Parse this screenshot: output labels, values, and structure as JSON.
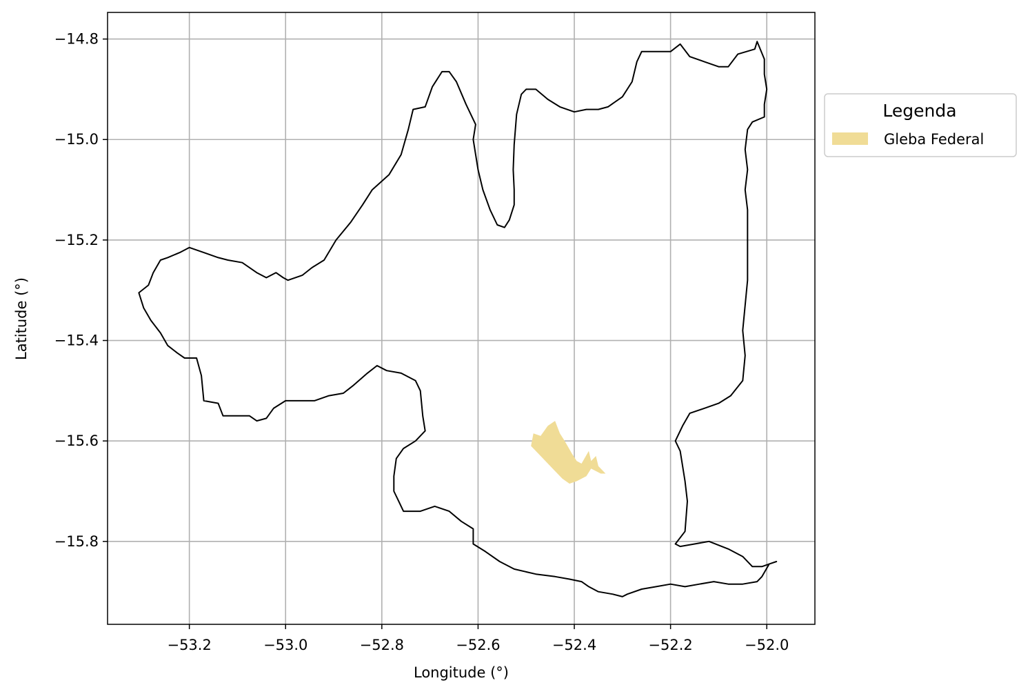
{
  "chart_data": {
    "type": "map",
    "title": "",
    "xlabel": "Longitude (°)",
    "ylabel": "Latitude (°)",
    "xlim": [
      -53.37,
      -51.9
    ],
    "ylim": [
      -15.965,
      -14.747
    ],
    "xticks": [
      -53.2,
      -53.0,
      -52.8,
      -52.6,
      -52.4,
      -52.2,
      -52.0
    ],
    "yticks": [
      -14.8,
      -15.0,
      -15.2,
      -15.4,
      -15.6,
      -15.8
    ],
    "xtick_labels": [
      "−53.2",
      "−53.0",
      "−52.8",
      "−52.6",
      "−52.4",
      "−52.2",
      "−52.0"
    ],
    "ytick_labels": [
      "−14.8",
      "−15.0",
      "−15.2",
      "−15.4",
      "−15.6",
      "−15.8"
    ],
    "grid": true,
    "legend": {
      "title": "Legenda",
      "placement": "outside-right-top",
      "items": [
        {
          "label": "Gleba Federal",
          "color": "#f0dc96"
        }
      ]
    },
    "boundary": {
      "stroke": "#000000",
      "coords": [
        [
          -52.02,
          -14.805
        ],
        [
          -52.025,
          -14.82
        ],
        [
          -52.06,
          -14.83
        ],
        [
          -52.08,
          -14.855
        ],
        [
          -52.1,
          -14.855
        ],
        [
          -52.13,
          -14.845
        ],
        [
          -52.16,
          -14.835
        ],
        [
          -52.18,
          -14.81
        ],
        [
          -52.2,
          -14.825
        ],
        [
          -52.23,
          -14.825
        ],
        [
          -52.26,
          -14.825
        ],
        [
          -52.27,
          -14.845
        ],
        [
          -52.28,
          -14.885
        ],
        [
          -52.3,
          -14.915
        ],
        [
          -52.33,
          -14.935
        ],
        [
          -52.35,
          -14.94
        ],
        [
          -52.375,
          -14.94
        ],
        [
          -52.4,
          -14.945
        ],
        [
          -52.43,
          -14.935
        ],
        [
          -52.455,
          -14.92
        ],
        [
          -52.48,
          -14.9
        ],
        [
          -52.5,
          -14.9
        ],
        [
          -52.51,
          -14.91
        ],
        [
          -52.52,
          -14.95
        ],
        [
          -52.525,
          -15.01
        ],
        [
          -52.527,
          -15.06
        ],
        [
          -52.525,
          -15.1
        ],
        [
          -52.525,
          -15.13
        ],
        [
          -52.535,
          -15.16
        ],
        [
          -52.545,
          -15.175
        ],
        [
          -52.56,
          -15.17
        ],
        [
          -52.575,
          -15.14
        ],
        [
          -52.59,
          -15.1
        ],
        [
          -52.6,
          -15.06
        ],
        [
          -52.61,
          -15.0
        ],
        [
          -52.605,
          -14.97
        ],
        [
          -52.625,
          -14.93
        ],
        [
          -52.645,
          -14.885
        ],
        [
          -52.66,
          -14.865
        ],
        [
          -52.675,
          -14.865
        ],
        [
          -52.695,
          -14.895
        ],
        [
          -52.71,
          -14.935
        ],
        [
          -52.735,
          -14.94
        ],
        [
          -52.745,
          -14.98
        ],
        [
          -52.76,
          -15.03
        ],
        [
          -52.785,
          -15.07
        ],
        [
          -52.82,
          -15.1
        ],
        [
          -52.84,
          -15.13
        ],
        [
          -52.865,
          -15.165
        ],
        [
          -52.895,
          -15.2
        ],
        [
          -52.92,
          -15.24
        ],
        [
          -52.945,
          -15.255
        ],
        [
          -52.965,
          -15.27
        ],
        [
          -52.995,
          -15.28
        ],
        [
          -53.005,
          -15.275
        ],
        [
          -53.02,
          -15.265
        ],
        [
          -53.04,
          -15.275
        ],
        [
          -53.06,
          -15.265
        ],
        [
          -53.09,
          -15.245
        ],
        [
          -53.12,
          -15.24
        ],
        [
          -53.14,
          -15.235
        ],
        [
          -53.17,
          -15.225
        ],
        [
          -53.2,
          -15.215
        ],
        [
          -53.22,
          -15.225
        ],
        [
          -53.245,
          -15.235
        ],
        [
          -53.26,
          -15.24
        ],
        [
          -53.275,
          -15.265
        ],
        [
          -53.285,
          -15.29
        ],
        [
          -53.305,
          -15.305
        ],
        [
          -53.295,
          -15.335
        ],
        [
          -53.28,
          -15.36
        ],
        [
          -53.26,
          -15.385
        ],
        [
          -53.245,
          -15.41
        ],
        [
          -53.225,
          -15.425
        ],
        [
          -53.21,
          -15.435
        ],
        [
          -53.185,
          -15.435
        ],
        [
          -53.175,
          -15.47
        ],
        [
          -53.17,
          -15.52
        ],
        [
          -53.14,
          -15.525
        ],
        [
          -53.13,
          -15.55
        ],
        [
          -53.1,
          -15.55
        ],
        [
          -53.075,
          -15.55
        ],
        [
          -53.06,
          -15.56
        ],
        [
          -53.04,
          -15.555
        ],
        [
          -53.025,
          -15.535
        ],
        [
          -53.0,
          -15.52
        ],
        [
          -52.97,
          -15.52
        ],
        [
          -52.94,
          -15.52
        ],
        [
          -52.91,
          -15.51
        ],
        [
          -52.88,
          -15.505
        ],
        [
          -52.86,
          -15.49
        ],
        [
          -52.83,
          -15.465
        ],
        [
          -52.81,
          -15.45
        ],
        [
          -52.79,
          -15.46
        ],
        [
          -52.76,
          -15.465
        ],
        [
          -52.73,
          -15.48
        ],
        [
          -52.72,
          -15.5
        ],
        [
          -52.715,
          -15.55
        ],
        [
          -52.71,
          -15.58
        ],
        [
          -52.73,
          -15.6
        ],
        [
          -52.755,
          -15.615
        ],
        [
          -52.77,
          -15.635
        ],
        [
          -52.775,
          -15.67
        ],
        [
          -52.775,
          -15.7
        ],
        [
          -52.765,
          -15.72
        ],
        [
          -52.755,
          -15.74
        ],
        [
          -52.72,
          -15.74
        ],
        [
          -52.69,
          -15.73
        ],
        [
          -52.66,
          -15.74
        ],
        [
          -52.635,
          -15.76
        ],
        [
          -52.61,
          -15.775
        ],
        [
          -52.61,
          -15.805
        ],
        [
          -52.585,
          -15.82
        ],
        [
          -52.555,
          -15.84
        ],
        [
          -52.525,
          -15.855
        ],
        [
          -52.48,
          -15.865
        ],
        [
          -52.44,
          -15.87
        ],
        [
          -52.41,
          -15.875
        ],
        [
          -52.385,
          -15.88
        ],
        [
          -52.37,
          -15.89
        ],
        [
          -52.35,
          -15.9
        ],
        [
          -52.32,
          -15.905
        ],
        [
          -52.3,
          -15.91
        ],
        [
          -52.29,
          -15.905
        ],
        [
          -52.26,
          -15.895
        ],
        [
          -52.23,
          -15.89
        ],
        [
          -52.2,
          -15.885
        ],
        [
          -52.17,
          -15.89
        ],
        [
          -52.14,
          -15.885
        ],
        [
          -52.11,
          -15.88
        ],
        [
          -52.08,
          -15.885
        ],
        [
          -52.05,
          -15.885
        ],
        [
          -52.02,
          -15.88
        ],
        [
          -52.01,
          -15.87
        ],
        [
          -51.995,
          -15.845
        ],
        [
          -51.98,
          -15.84
        ],
        [
          -51.995,
          -15.845
        ],
        [
          -52.01,
          -15.85
        ],
        [
          -52.03,
          -15.85
        ],
        [
          -52.05,
          -15.83
        ],
        [
          -52.08,
          -15.815
        ],
        [
          -52.12,
          -15.8
        ],
        [
          -52.15,
          -15.805
        ],
        [
          -52.18,
          -15.81
        ],
        [
          -52.19,
          -15.805
        ],
        [
          -52.17,
          -15.78
        ],
        [
          -52.165,
          -15.72
        ],
        [
          -52.17,
          -15.68
        ],
        [
          -52.175,
          -15.65
        ],
        [
          -52.18,
          -15.62
        ],
        [
          -52.19,
          -15.6
        ],
        [
          -52.175,
          -15.57
        ],
        [
          -52.16,
          -15.545
        ],
        [
          -52.13,
          -15.535
        ],
        [
          -52.1,
          -15.525
        ],
        [
          -52.075,
          -15.51
        ],
        [
          -52.05,
          -15.48
        ],
        [
          -52.045,
          -15.43
        ],
        [
          -52.05,
          -15.38
        ],
        [
          -52.045,
          -15.33
        ],
        [
          -52.04,
          -15.28
        ],
        [
          -52.04,
          -15.22
        ],
        [
          -52.04,
          -15.18
        ],
        [
          -52.04,
          -15.14
        ],
        [
          -52.045,
          -15.1
        ],
        [
          -52.04,
          -15.06
        ],
        [
          -52.045,
          -15.02
        ],
        [
          -52.04,
          -14.98
        ],
        [
          -52.03,
          -14.965
        ],
        [
          -52.005,
          -14.955
        ],
        [
          -52.005,
          -14.93
        ],
        [
          -52.0,
          -14.9
        ],
        [
          -52.005,
          -14.87
        ],
        [
          -52.005,
          -14.84
        ],
        [
          -52.02,
          -14.805
        ]
      ]
    },
    "gleba": {
      "fill": "#f0dc96",
      "coords": [
        [
          -52.49,
          -15.61
        ],
        [
          -52.485,
          -15.585
        ],
        [
          -52.47,
          -15.59
        ],
        [
          -52.455,
          -15.57
        ],
        [
          -52.44,
          -15.56
        ],
        [
          -52.43,
          -15.585
        ],
        [
          -52.42,
          -15.6
        ],
        [
          -52.405,
          -15.625
        ],
        [
          -52.395,
          -15.64
        ],
        [
          -52.385,
          -15.645
        ],
        [
          -52.37,
          -15.62
        ],
        [
          -52.365,
          -15.64
        ],
        [
          -52.355,
          -15.63
        ],
        [
          -52.35,
          -15.65
        ],
        [
          -52.335,
          -15.665
        ],
        [
          -52.345,
          -15.665
        ],
        [
          -52.365,
          -15.655
        ],
        [
          -52.375,
          -15.67
        ],
        [
          -52.395,
          -15.68
        ],
        [
          -52.41,
          -15.685
        ],
        [
          -52.425,
          -15.675
        ],
        [
          -52.44,
          -15.66
        ],
        [
          -52.46,
          -15.64
        ],
        [
          -52.475,
          -15.625
        ]
      ]
    }
  }
}
